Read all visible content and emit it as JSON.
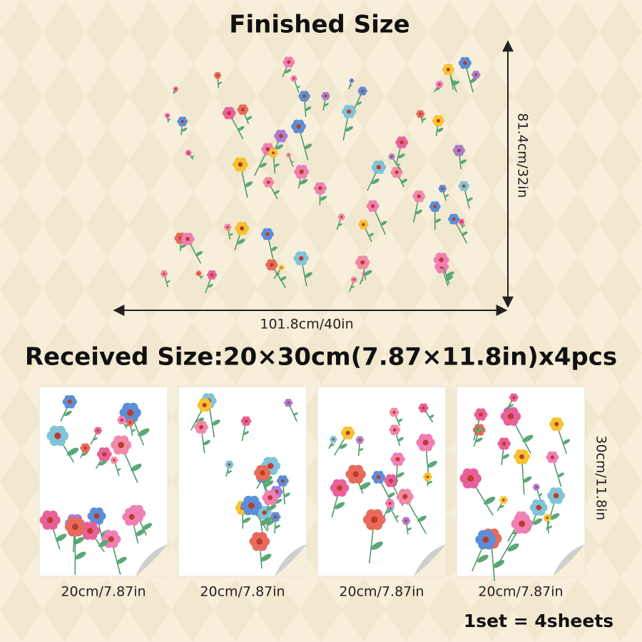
{
  "finished": {
    "title": "Finished Size",
    "height_label": "81.4cm/32in",
    "width_label": "101.8cm/40in"
  },
  "received": {
    "title": "Received Size:20×30cm(7.87×11.8in)x4pcs",
    "sheets": [
      {
        "width_label": "20cm/7.87in"
      },
      {
        "width_label": "20cm/7.87in"
      },
      {
        "width_label": "20cm/7.87in"
      },
      {
        "width_label": "20cm/7.87in"
      }
    ],
    "height_label": "30cm/11.8in",
    "set_note": "1set = 4sheets"
  }
}
